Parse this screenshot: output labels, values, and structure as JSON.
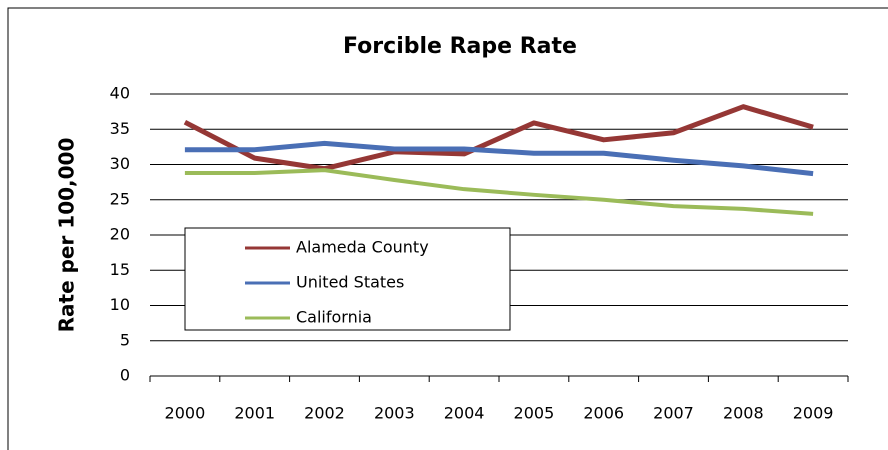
{
  "chart_data": {
    "type": "line",
    "title": "Forcible Rape Rate",
    "y_label": "Rate per 100,000",
    "categories": [
      "2000",
      "2001",
      "2002",
      "2003",
      "2004",
      "2005",
      "2006",
      "2007",
      "2008",
      "2009"
    ],
    "series": [
      {
        "name": "Alameda County",
        "color": "#953735",
        "values": [
          36.0,
          30.9,
          29.4,
          31.8,
          31.5,
          35.9,
          33.5,
          34.5,
          38.2,
          35.3
        ]
      },
      {
        "name": "United States",
        "color": "#4a6fb5",
        "values": [
          32.1,
          32.1,
          33.0,
          32.2,
          32.2,
          31.6,
          31.6,
          30.6,
          29.8,
          28.7
        ]
      },
      {
        "name": "California",
        "color": "#9bbb59",
        "values": [
          28.8,
          28.8,
          29.2,
          27.8,
          26.5,
          25.7,
          25.0,
          24.1,
          23.7,
          23.0
        ]
      }
    ],
    "ylim": [
      0,
      40
    ],
    "yticks": [
      0,
      5,
      10,
      15,
      20,
      25,
      30,
      35,
      40
    ],
    "grid": true
  }
}
